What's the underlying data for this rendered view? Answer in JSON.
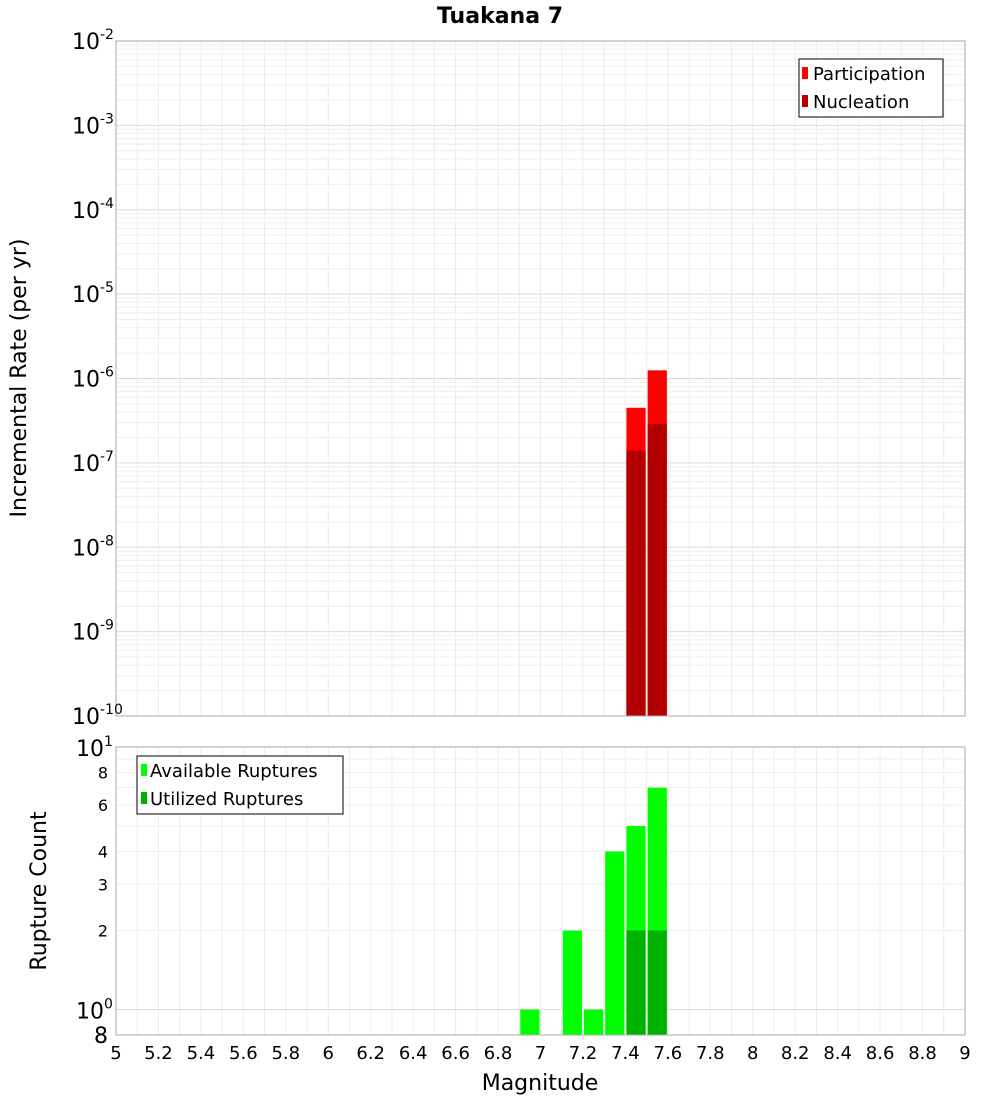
{
  "chart_data": [
    {
      "type": "bar",
      "title": "Tuakana 7",
      "xlabel": "",
      "ylabel": "Incremental Rate (per yr)",
      "xlim": [
        5,
        9
      ],
      "ylim": [
        1e-10,
        0.01
      ],
      "yscale": "log",
      "bin_width": 0.1,
      "y_ticks": [
        {
          "base": "10",
          "exp": "-2"
        },
        {
          "base": "10",
          "exp": "-3"
        },
        {
          "base": "10",
          "exp": "-4"
        },
        {
          "base": "10",
          "exp": "-5"
        },
        {
          "base": "10",
          "exp": "-6"
        },
        {
          "base": "10",
          "exp": "-7"
        },
        {
          "base": "10",
          "exp": "-8"
        },
        {
          "base": "10",
          "exp": "-9"
        },
        {
          "base": "10",
          "exp": "-10"
        }
      ],
      "series": [
        {
          "name": "Participation",
          "color": "#ff0000",
          "points": [
            {
              "x": 7.45,
              "y": 4.5e-07
            },
            {
              "x": 7.55,
              "y": 1.25e-06
            }
          ]
        },
        {
          "name": "Nucleation",
          "color": "#b20000",
          "points": [
            {
              "x": 7.45,
              "y": 1.4e-07
            },
            {
              "x": 7.55,
              "y": 2.9e-07
            }
          ]
        }
      ],
      "legend_position": "top-right",
      "grid": true
    },
    {
      "type": "bar",
      "xlabel": "Magnitude",
      "ylabel": "Rupture Count",
      "xlim": [
        5,
        9
      ],
      "ylim": [
        0.8,
        10
      ],
      "yscale": "log",
      "bin_width": 0.1,
      "x_tick_labels": [
        "5",
        "5.2",
        "5.4",
        "5.6",
        "5.8",
        "6",
        "6.2",
        "6.4",
        "6.6",
        "6.8",
        "7",
        "7.2",
        "7.4",
        "7.6",
        "7.8",
        "8",
        "8.2",
        "8.4",
        "8.6",
        "8.8",
        "9"
      ],
      "y_ticks_major": [
        {
          "base": "10",
          "exp": "1"
        },
        {
          "base": "10",
          "exp": "0"
        }
      ],
      "y_ticks_minor": [
        "8",
        "6",
        "4",
        "3",
        "2"
      ],
      "y_bottom_label": "8",
      "series": [
        {
          "name": "Available Ruptures",
          "color": "#00ff00",
          "points": [
            {
              "x": 6.95,
              "y": 1
            },
            {
              "x": 7.15,
              "y": 2
            },
            {
              "x": 7.25,
              "y": 1
            },
            {
              "x": 7.35,
              "y": 4
            },
            {
              "x": 7.45,
              "y": 5
            },
            {
              "x": 7.55,
              "y": 7
            }
          ]
        },
        {
          "name": "Utilized Ruptures",
          "color": "#00b200",
          "points": [
            {
              "x": 7.45,
              "y": 2
            },
            {
              "x": 7.55,
              "y": 2
            }
          ]
        }
      ],
      "legend_position": "top-left",
      "grid": true
    }
  ]
}
